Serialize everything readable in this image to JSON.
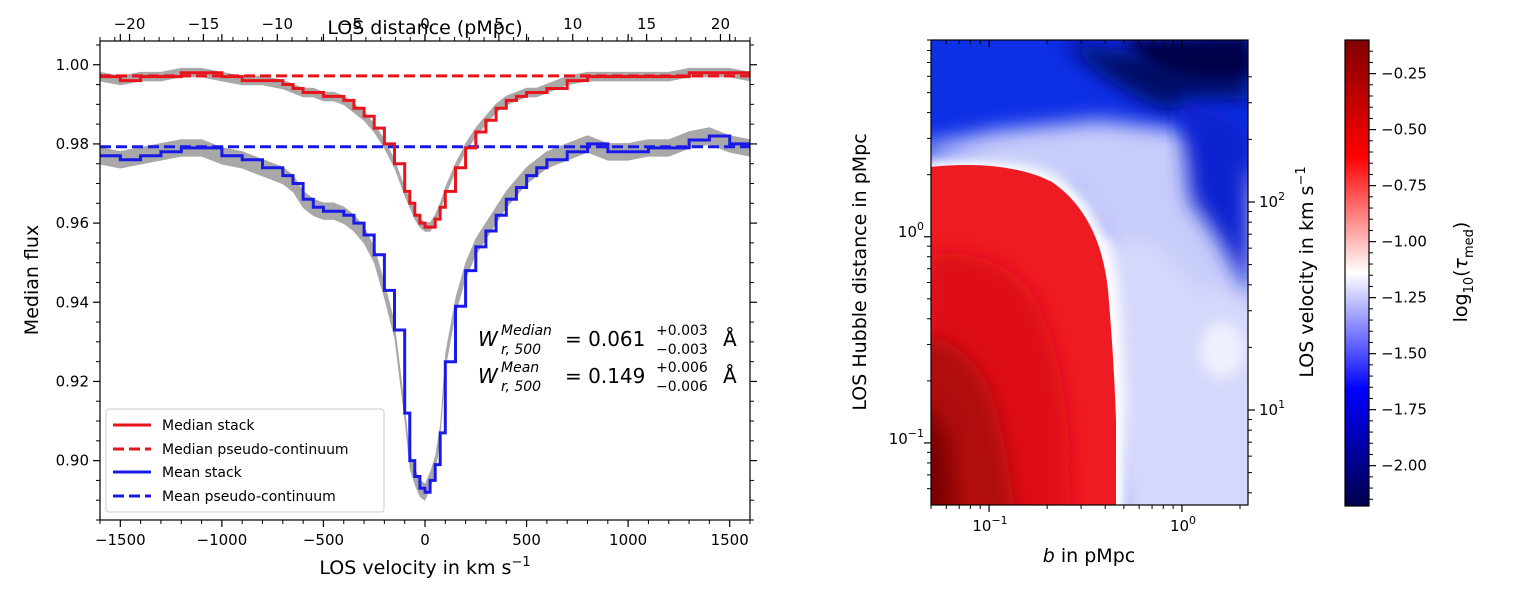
{
  "chart_data": [
    {
      "type": "line",
      "xlabel_top": "LOS distance (pMpc)",
      "ylabel": "Median flux",
      "xlim": [
        -1600,
        1600
      ],
      "ylim": [
        0.885,
        1.006
      ],
      "xlim_top": [
        -22,
        22
      ],
      "xticks": [
        -1500,
        -1000,
        -500,
        0,
        500,
        1000,
        1500
      ],
      "xtick_labels": [
        "−1500",
        "−1000",
        "−500",
        "0",
        "500",
        "1000",
        "1500"
      ],
      "yticks": [
        0.9,
        0.92,
        0.94,
        0.96,
        0.98,
        1.0
      ],
      "ytick_labels": [
        "0.90",
        "0.92",
        "0.94",
        "0.96",
        "0.98",
        "1.00"
      ],
      "xticks_top": [
        -20,
        -15,
        -10,
        -5,
        0,
        5,
        10,
        15,
        20
      ],
      "xtick_labels_top": [
        "−20",
        "−15",
        "−10",
        "−5",
        "0",
        "5",
        "10",
        "15",
        "20"
      ],
      "legend_position": "lower-left",
      "x": [
        -1600,
        -1500,
        -1400,
        -1300,
        -1200,
        -1150,
        -1100,
        -1000,
        -900,
        -800,
        -700,
        -650,
        -600,
        -550,
        -500,
        -450,
        -400,
        -350,
        -300,
        -250,
        -200,
        -150,
        -100,
        -75,
        -50,
        -25,
        0,
        25,
        50,
        75,
        100,
        150,
        200,
        250,
        300,
        350,
        400,
        450,
        500,
        550,
        600,
        700,
        800,
        900,
        1000,
        1100,
        1200,
        1300,
        1400,
        1500,
        1600
      ],
      "series": [
        {
          "name": "Median stack",
          "color": "#e8141c",
          "style": "solid",
          "values": [
            0.997,
            0.996,
            0.997,
            0.997,
            0.998,
            0.998,
            0.998,
            0.997,
            0.996,
            0.996,
            0.995,
            0.994,
            0.993,
            0.993,
            0.992,
            0.992,
            0.991,
            0.989,
            0.987,
            0.984,
            0.98,
            0.975,
            0.968,
            0.965,
            0.962,
            0.96,
            0.959,
            0.959,
            0.961,
            0.964,
            0.968,
            0.974,
            0.979,
            0.983,
            0.986,
            0.989,
            0.991,
            0.992,
            0.993,
            0.993,
            0.994,
            0.996,
            0.997,
            0.997,
            0.997,
            0.997,
            0.997,
            0.998,
            0.998,
            0.998,
            0.997
          ]
        },
        {
          "name": "Median pseudo-continuum",
          "color": "#e8141c",
          "style": "dashed",
          "constant": 0.9972
        },
        {
          "name": "Mean stack",
          "color": "#1a1ae8",
          "style": "solid",
          "values": [
            0.977,
            0.976,
            0.977,
            0.978,
            0.979,
            0.979,
            0.979,
            0.977,
            0.976,
            0.974,
            0.972,
            0.97,
            0.966,
            0.964,
            0.963,
            0.963,
            0.962,
            0.96,
            0.957,
            0.952,
            0.943,
            0.933,
            0.912,
            0.9,
            0.896,
            0.893,
            0.892,
            0.895,
            0.899,
            0.907,
            0.925,
            0.939,
            0.948,
            0.954,
            0.958,
            0.962,
            0.966,
            0.969,
            0.972,
            0.974,
            0.976,
            0.978,
            0.98,
            0.978,
            0.978,
            0.979,
            0.979,
            0.981,
            0.982,
            0.98,
            0.979
          ]
        },
        {
          "name": "Mean pseudo-continuum",
          "color": "#1a1ae8",
          "style": "dashed",
          "constant": 0.9793
        }
      ],
      "annotations": [
        {
          "W": "W",
          "sub": "r, 500",
          "sup": "Median",
          "text": "= 0.061",
          "up": "+0.003",
          "down": "−0.003",
          "unit": "Å"
        },
        {
          "W": "W",
          "sub": "r, 500",
          "sup": "Mean",
          "text": "= 0.149",
          "up": "+0.006",
          "down": "−0.006",
          "unit": "Å"
        }
      ]
    },
    {
      "type": "heatmap",
      "xlabel": "b in pMpc",
      "ylabel": "LOS Hubble distance in pMpc",
      "ylabel_right": "LOS velocity in km s⁻¹",
      "xscale": "log",
      "yscale": "log",
      "xlim": [
        0.05,
        2.2
      ],
      "ylim": [
        0.05,
        9
      ],
      "xtick_labels": [
        "10⁻¹",
        "10⁰"
      ],
      "ytick_labels": [
        "10⁻¹",
        "10⁰"
      ],
      "ytick_labels_right": [
        "10¹",
        "10²"
      ],
      "colormap": "seismic",
      "colorbar": {
        "label": "log10(τmed)",
        "range": [
          -2.18,
          -0.1
        ],
        "ticks": [
          -0.25,
          -0.5,
          -0.75,
          -1.0,
          -1.25,
          -1.5,
          -1.75,
          -2.0
        ],
        "tick_labels": [
          "−0.25",
          "−0.50",
          "−0.75",
          "−1.00",
          "−1.25",
          "−1.50",
          "−1.75",
          "−2.00"
        ]
      }
    }
  ]
}
